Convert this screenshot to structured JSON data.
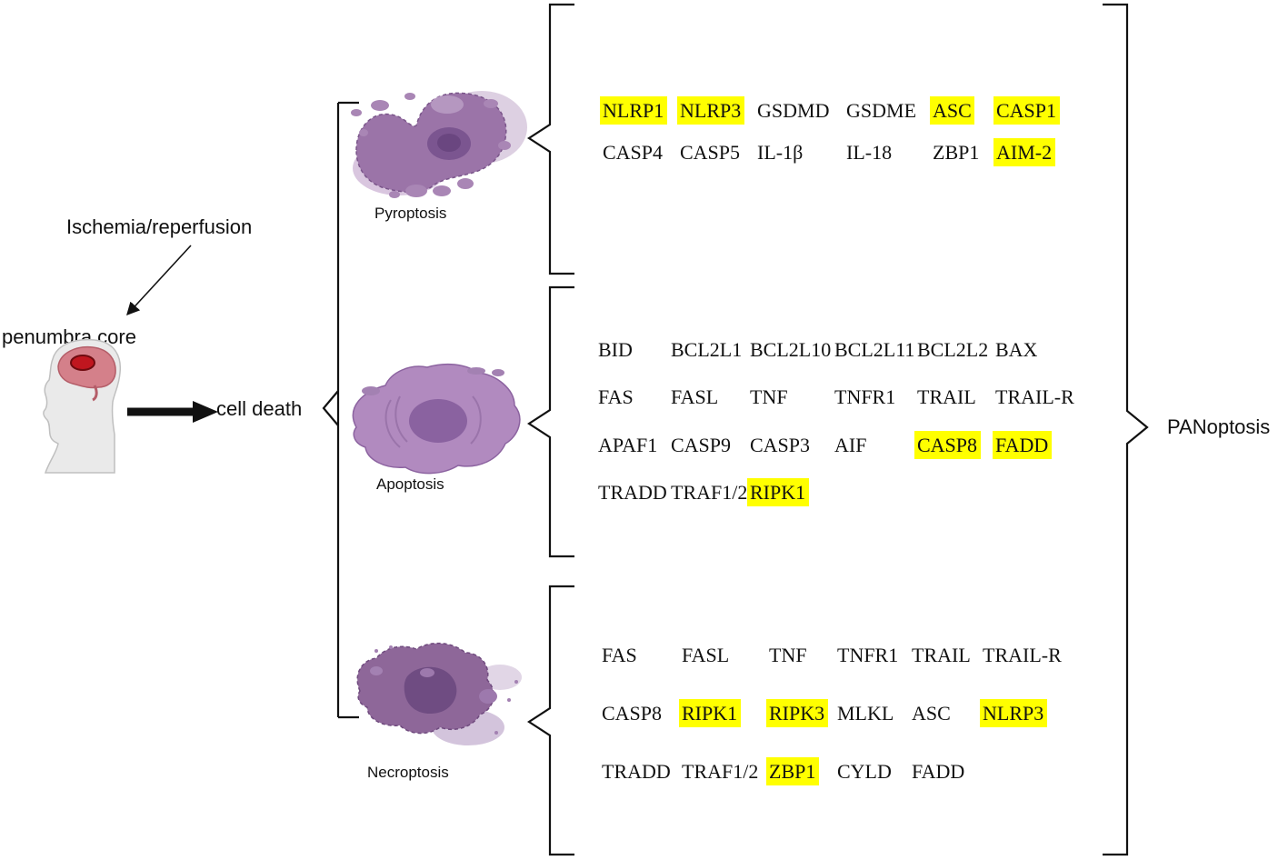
{
  "labels": {
    "insult": "Ischemia/reperfusion",
    "penumbra": "penumbra core",
    "cell_death": "cell death",
    "panoptosis": "PANoptosis"
  },
  "colors": {
    "highlight": "#ffff00",
    "cell_purple": "#9b74a8",
    "cell_light": "#c7a8cf",
    "nucleus": "#7b5590"
  },
  "pathways": [
    {
      "name": "Pyroptosis",
      "genes": [
        [
          {
            "text": "NLRP1",
            "highlight": true
          },
          {
            "text": "NLRP3",
            "highlight": true
          },
          {
            "text": "GSDMD",
            "highlight": false
          },
          {
            "text": "GSDME",
            "highlight": false
          },
          {
            "text": "ASC",
            "highlight": true
          },
          {
            "text": "CASP1",
            "highlight": true
          }
        ],
        [
          {
            "text": "CASP4",
            "highlight": false
          },
          {
            "text": "CASP5",
            "highlight": false
          },
          {
            "text": "IL-1β",
            "highlight": false
          },
          {
            "text": "IL-18",
            "highlight": false
          },
          {
            "text": "ZBP1",
            "highlight": false
          },
          {
            "text": "AIM-2",
            "highlight": true
          }
        ]
      ]
    },
    {
      "name": "Apoptosis",
      "genes": [
        [
          {
            "text": "BID",
            "highlight": false
          },
          {
            "text": "BCL2L1",
            "highlight": false
          },
          {
            "text": "BCL2L10",
            "highlight": false
          },
          {
            "text": "BCL2L11",
            "highlight": false
          },
          {
            "text": "BCL2L2",
            "highlight": false
          },
          {
            "text": "BAX",
            "highlight": false
          }
        ],
        [
          {
            "text": "FAS",
            "highlight": false
          },
          {
            "text": "FASL",
            "highlight": false
          },
          {
            "text": "TNF",
            "highlight": false
          },
          {
            "text": "TNFR1",
            "highlight": false
          },
          {
            "text": "TRAIL",
            "highlight": false
          },
          {
            "text": "TRAIL-R",
            "highlight": false
          }
        ],
        [
          {
            "text": "APAF1",
            "highlight": false
          },
          {
            "text": "CASP9",
            "highlight": false
          },
          {
            "text": "CASP3",
            "highlight": false
          },
          {
            "text": "AIF",
            "highlight": false
          },
          {
            "text": "CASP8",
            "highlight": true
          },
          {
            "text": "FADD",
            "highlight": true
          }
        ],
        [
          {
            "text": "TRADD",
            "highlight": false
          },
          {
            "text": "TRAF1/2",
            "highlight": false
          },
          {
            "text": "RIPK1",
            "highlight": true
          }
        ]
      ]
    },
    {
      "name": "Necroptosis",
      "genes": [
        [
          {
            "text": "FAS",
            "highlight": false
          },
          {
            "text": "FASL",
            "highlight": false
          },
          {
            "text": "TNF",
            "highlight": false
          },
          {
            "text": "TNFR1",
            "highlight": false
          },
          {
            "text": "TRAIL",
            "highlight": false
          },
          {
            "text": "TRAIL-R",
            "highlight": false
          }
        ],
        [
          {
            "text": "CASP8",
            "highlight": false
          },
          {
            "text": "RIPK1",
            "highlight": true
          },
          {
            "text": "RIPK3",
            "highlight": true
          },
          {
            "text": "MLKL",
            "highlight": false
          },
          {
            "text": "ASC",
            "highlight": false
          },
          {
            "text": "NLRP3",
            "highlight": true
          }
        ],
        [
          {
            "text": "TRADD",
            "highlight": false
          },
          {
            "text": "TRAF1/2",
            "highlight": false
          },
          {
            "text": "ZBP1",
            "highlight": true
          },
          {
            "text": "CYLD",
            "highlight": false
          },
          {
            "text": "FADD",
            "highlight": false
          }
        ]
      ]
    }
  ]
}
